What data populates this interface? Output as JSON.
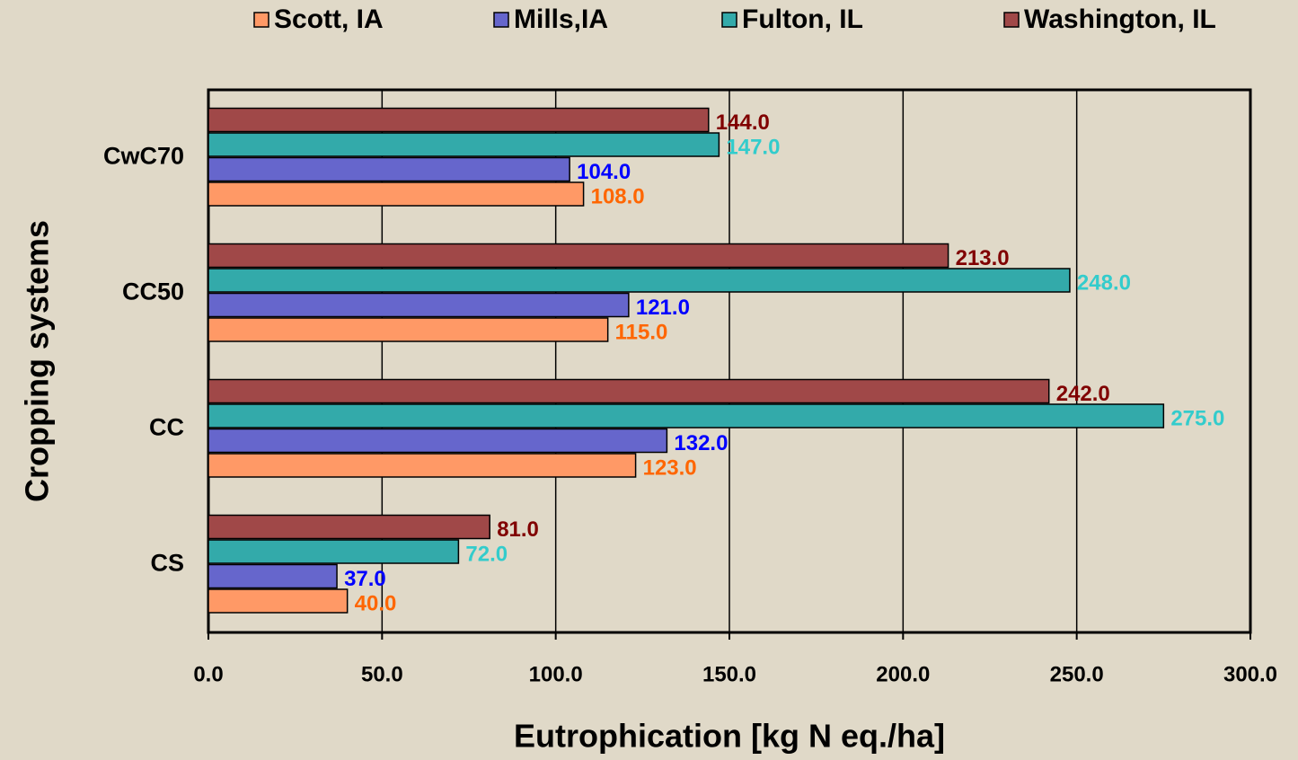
{
  "chart_data": {
    "type": "barh",
    "categories": [
      "CS",
      "CC",
      "CC50",
      "CwC70"
    ],
    "series": [
      {
        "name": "Scott, IA",
        "color": "#ff9966",
        "label_color": "#ff6600",
        "values": [
          40,
          123,
          115,
          108
        ],
        "value_labels": [
          "40.0",
          "123.0",
          "115.0",
          "108.0"
        ]
      },
      {
        "name": "Mills,IA",
        "color": "#6666cc",
        "label_color": "#0000ff",
        "values": [
          37,
          132,
          121,
          104
        ],
        "value_labels": [
          "37.0",
          "132.0",
          "121.0",
          "104.0"
        ]
      },
      {
        "name": "Fulton, IL",
        "color": "#33aaaa",
        "label_color": "#33cccc",
        "values": [
          72,
          275,
          248,
          147
        ],
        "value_labels": [
          "72.0",
          "275.0",
          "248.0",
          "147.0"
        ]
      },
      {
        "name": "Washington, IL",
        "color": "#a04848",
        "label_color": "#800000",
        "values": [
          81,
          242,
          213,
          144
        ],
        "value_labels": [
          "81.0",
          "242.0",
          "213.0",
          "144.0"
        ]
      }
    ],
    "xlabel": "Eutrophication [kg N eq./ha]",
    "ylabel": "Cropping systems",
    "xlim": [
      0,
      300
    ],
    "xticks": [
      {
        "value": 0,
        "label": "0.0"
      },
      {
        "value": 50,
        "label": "50.0"
      },
      {
        "value": 100,
        "label": "100.0"
      },
      {
        "value": 150,
        "label": "150.0"
      },
      {
        "value": 200,
        "label": "200.0"
      },
      {
        "value": 250,
        "label": "250.0"
      },
      {
        "value": 300,
        "label": "300.0"
      }
    ],
    "grid": true,
    "legend": "top"
  }
}
